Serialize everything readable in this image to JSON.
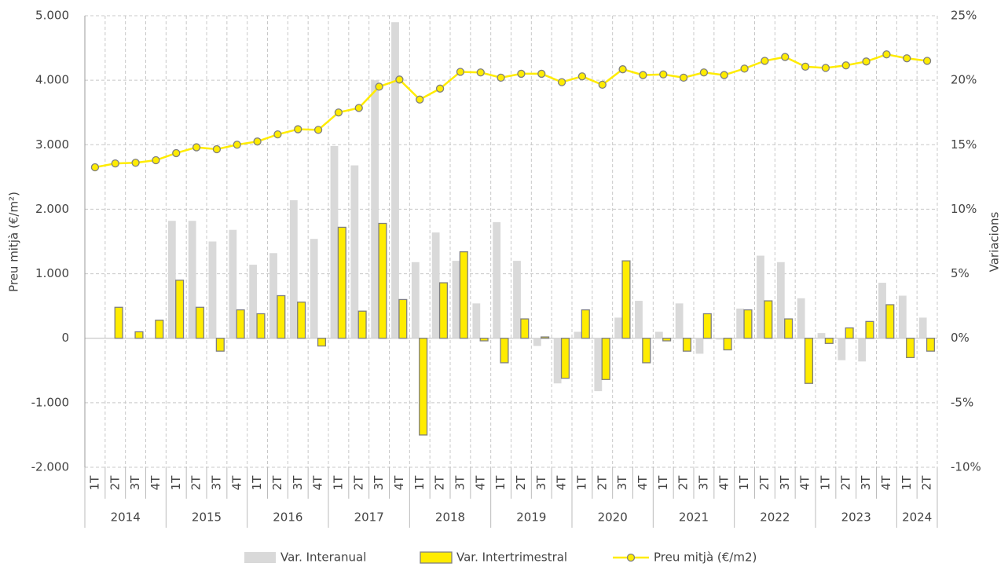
{
  "chart_data": {
    "type": "bar-line",
    "y_label": "Preu mitjà (€/m²)",
    "y2_label": "Variacions",
    "year_groups": [
      {
        "label": "2014",
        "quarters": [
          "1T",
          "2T",
          "3T",
          "4T"
        ]
      },
      {
        "label": "2015",
        "quarters": [
          "1T",
          "2T",
          "3T",
          "4T"
        ]
      },
      {
        "label": "2016",
        "quarters": [
          "1T",
          "2T",
          "3T",
          "4T"
        ]
      },
      {
        "label": "2017",
        "quarters": [
          "1T",
          "2T",
          "3T",
          "4T"
        ]
      },
      {
        "label": "2018",
        "quarters": [
          "1T",
          "2T",
          "3T",
          "4T"
        ]
      },
      {
        "label": "2019",
        "quarters": [
          "1T",
          "2T",
          "3T",
          "4T"
        ]
      },
      {
        "label": "2020",
        "quarters": [
          "1T",
          "2T",
          "3T",
          "4T"
        ]
      },
      {
        "label": "2021",
        "quarters": [
          "1T",
          "2T",
          "3T",
          "4T"
        ]
      },
      {
        "label": "2022",
        "quarters": [
          "1T",
          "2T",
          "3T",
          "4T"
        ]
      },
      {
        "label": "2023",
        "quarters": [
          "1T",
          "2T",
          "3T",
          "4T"
        ]
      },
      {
        "label": "2024",
        "quarters": [
          "1T",
          "2T"
        ]
      }
    ],
    "ylim": [
      -2000,
      5000
    ],
    "yticks": [
      {
        "value": -2000,
        "label": "-2.000"
      },
      {
        "value": -1000,
        "label": "-1.000"
      },
      0,
      {
        "value": 1000,
        "label": "1.000"
      },
      {
        "value": 2000,
        "label": "2.000"
      },
      {
        "value": 3000,
        "label": "3.000"
      },
      {
        "value": 4000,
        "label": "4.000"
      },
      {
        "value": 5000,
        "label": "5.000"
      }
    ],
    "y2lim": [
      -10,
      25
    ],
    "y2ticks": [
      {
        "value": -10,
        "label": "-10%"
      },
      {
        "value": -5,
        "label": "-5%"
      },
      {
        "value": 0,
        "label": "0%"
      },
      {
        "value": 5,
        "label": "5%"
      },
      {
        "value": 10,
        "label": "10%"
      },
      {
        "value": 15,
        "label": "15%"
      },
      {
        "value": 20,
        "label": "20%"
      },
      {
        "value": 25,
        "label": "25%"
      }
    ],
    "grid": true,
    "legend": "bottom",
    "series": [
      {
        "name": "Var. Interanual",
        "kind": "bar",
        "axis": "y2",
        "color": "#d9d9d9",
        "values": [
          null,
          null,
          null,
          null,
          9.1,
          9.1,
          7.5,
          8.4,
          5.7,
          6.6,
          10.7,
          7.7,
          14.9,
          13.4,
          20.0,
          24.5,
          5.9,
          8.2,
          6.0,
          2.7,
          9.0,
          6.0,
          -0.6,
          -3.5,
          0.5,
          -4.1,
          1.6,
          2.9,
          0.5,
          2.7,
          -1.2,
          -0.1,
          2.3,
          6.4,
          5.9,
          3.1,
          0.4,
          -1.7,
          -1.8,
          4.3,
          3.3,
          1.6
        ]
      },
      {
        "name": "Var. Intertrimestral",
        "kind": "bar",
        "axis": "y2",
        "color": "#ffec00",
        "values": [
          null,
          2.4,
          0.5,
          1.4,
          4.5,
          2.4,
          -1.0,
          2.2,
          1.9,
          3.3,
          2.8,
          -0.6,
          8.6,
          2.1,
          8.9,
          3.0,
          -7.5,
          4.3,
          6.7,
          -0.2,
          -1.9,
          1.5,
          0.1,
          -3.1,
          2.2,
          -3.2,
          6.0,
          -1.9,
          -0.2,
          -1.0,
          1.9,
          -0.9,
          2.2,
          2.9,
          1.5,
          -3.5,
          -0.4,
          0.8,
          1.3,
          2.6,
          -1.5,
          -1.0
        ]
      },
      {
        "name": "Preu mitjà (€/m2)",
        "kind": "line",
        "axis": "y",
        "color": "#ffec00",
        "values": [
          2650,
          2710,
          2720,
          2760,
          2870,
          2960,
          2930,
          3000,
          3050,
          3160,
          3240,
          3230,
          3500,
          3570,
          3900,
          4010,
          3700,
          3870,
          4130,
          4120,
          4040,
          4100,
          4100,
          3970,
          4060,
          3930,
          4170,
          4080,
          4090,
          4040,
          4120,
          4080,
          4180,
          4300,
          4360,
          4210,
          4190,
          4230,
          4290,
          4400,
          4340,
          4300
        ]
      }
    ]
  }
}
